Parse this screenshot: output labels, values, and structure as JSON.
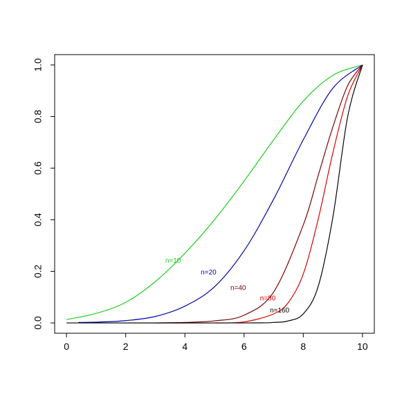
{
  "chart_data": {
    "type": "line",
    "title": "",
    "xlabel": "",
    "ylabel": "",
    "xlim": [
      -0.4,
      10.4
    ],
    "ylim": [
      -0.04,
      1.04
    ],
    "grid": false,
    "x_ticks": [
      0,
      2,
      4,
      6,
      8,
      10
    ],
    "x_tick_labels": [
      "0",
      "2",
      "4",
      "6",
      "8",
      "10"
    ],
    "y_ticks": [
      0.0,
      0.2,
      0.4,
      0.6,
      0.8,
      1.0
    ],
    "y_tick_labels": [
      "0.0",
      "0.2",
      "0.4",
      "0.6",
      "0.8",
      "1.0"
    ],
    "series": [
      {
        "name": "n=10",
        "color": "#22cc22",
        "x": [
          0,
          1,
          2,
          3,
          4,
          5,
          6,
          7,
          8,
          9,
          10
        ],
        "y": [
          0.013,
          0.037,
          0.08,
          0.16,
          0.27,
          0.4,
          0.55,
          0.71,
          0.86,
          0.96,
          1.0
        ],
        "label_at": [
          3.6,
          0.24
        ]
      },
      {
        "name": "n=20",
        "color": "#0000aa",
        "x": [
          0.4,
          1,
          2,
          3,
          4,
          5,
          6,
          7,
          8,
          9,
          10
        ],
        "y": [
          0.002,
          0.003,
          0.009,
          0.025,
          0.065,
          0.14,
          0.28,
          0.48,
          0.71,
          0.91,
          1.0
        ],
        "label_at": [
          4.8,
          0.195
        ]
      },
      {
        "name": "n=40",
        "color": "#7a0000",
        "x": [
          3,
          4,
          5,
          6,
          7,
          8,
          8.5,
          9,
          9.5,
          10
        ],
        "y": [
          0.0,
          0.002,
          0.008,
          0.03,
          0.12,
          0.38,
          0.57,
          0.76,
          0.92,
          1.0
        ],
        "label_at": [
          5.8,
          0.135
        ]
      },
      {
        "name": "n=80",
        "color": "#dd0000",
        "x": [
          5,
          6,
          7,
          7.5,
          8,
          8.5,
          9,
          9.5,
          10
        ],
        "y": [
          0.0,
          0.004,
          0.035,
          0.08,
          0.19,
          0.4,
          0.66,
          0.88,
          1.0
        ],
        "label_at": [
          6.8,
          0.095
        ]
      },
      {
        "name": "n=160",
        "color": "#000000",
        "x": [
          0,
          6,
          7,
          7.5,
          8,
          8.5,
          9,
          9.5,
          10
        ],
        "y": [
          0.0,
          0.0,
          0.002,
          0.008,
          0.035,
          0.14,
          0.41,
          0.8,
          1.0
        ],
        "label_at": [
          7.2,
          0.048
        ]
      }
    ]
  }
}
